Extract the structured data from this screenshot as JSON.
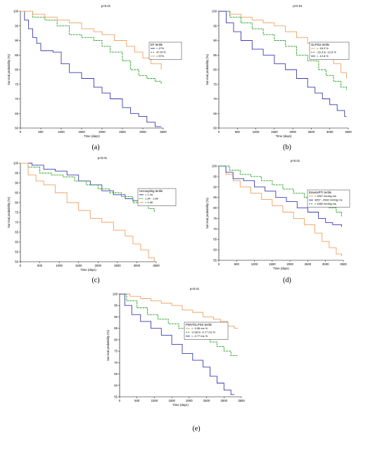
{
  "colors": {
    "blue": "#3a3ab0",
    "green": "#22a022",
    "orange": "#f0a060"
  },
  "chart_data": [
    {
      "type": "line",
      "panel_label": "(a)",
      "pvalue": "p<0.01",
      "xlabel": "Time (days)",
      "ylabel": "Survival probability (%)",
      "xlim": [
        0,
        3500
      ],
      "ylim": [
        60,
        100
      ],
      "xticks": [
        0,
        500,
        1000,
        1500,
        2000,
        2500,
        3000,
        3500
      ],
      "yticks": [
        60,
        65,
        70,
        75,
        80,
        85,
        90,
        95,
        100
      ],
      "legend_title": "EF tertile",
      "legend_pos": "right-middle",
      "series": [
        {
          "name": "< 47%",
          "color": "blue",
          "points": [
            [
              0,
              100
            ],
            [
              100,
              97
            ],
            [
              200,
              94
            ],
            [
              300,
              91
            ],
            [
              400,
              89
            ],
            [
              500,
              86.5
            ],
            [
              800,
              86
            ],
            [
              1000,
              82
            ],
            [
              1200,
              79
            ],
            [
              1500,
              77
            ],
            [
              1800,
              74
            ],
            [
              2000,
              72
            ],
            [
              2200,
              70
            ],
            [
              2500,
              67
            ],
            [
              2700,
              65
            ],
            [
              2900,
              64
            ],
            [
              3100,
              62
            ],
            [
              3300,
              60.5
            ],
            [
              3450,
              60.5
            ]
          ]
        },
        {
          "name": "47-57%",
          "color": "green",
          "points": [
            [
              0,
              100
            ],
            [
              300,
              98
            ],
            [
              600,
              97
            ],
            [
              900,
              95
            ],
            [
              1200,
              92
            ],
            [
              1500,
              91
            ],
            [
              1800,
              90
            ],
            [
              2000,
              88
            ],
            [
              2200,
              86
            ],
            [
              2500,
              83
            ],
            [
              2700,
              80
            ],
            [
              2900,
              78
            ],
            [
              3100,
              77
            ],
            [
              3300,
              76
            ],
            [
              3450,
              75
            ]
          ]
        },
        {
          "name": "> 57%",
          "color": "orange",
          "points": [
            [
              0,
              100
            ],
            [
              300,
              99
            ],
            [
              600,
              98
            ],
            [
              900,
              97
            ],
            [
              1200,
              96
            ],
            [
              1500,
              94
            ],
            [
              1800,
              93
            ],
            [
              2000,
              92
            ],
            [
              2300,
              90
            ],
            [
              2600,
              88
            ],
            [
              2800,
              86
            ],
            [
              3000,
              84
            ],
            [
              3200,
              82
            ],
            [
              3450,
              80
            ]
          ]
        }
      ]
    },
    {
      "type": "line",
      "panel_label": "(b)",
      "pvalue": "p<0.01",
      "xlabel": "Time (days)",
      "ylabel": "Survival probability (%)",
      "xlim": [
        0,
        3500
      ],
      "ylim": [
        60,
        100
      ],
      "xticks": [
        0,
        500,
        1000,
        1500,
        2000,
        2500,
        3000,
        3500
      ],
      "yticks": [
        60,
        65,
        70,
        75,
        80,
        85,
        90,
        95,
        100
      ],
      "legend_title": "GLPSS tertile",
      "legend_pos": "right-middle",
      "series": [
        {
          "name": "< -16.3 %",
          "color": "orange",
          "points": [
            [
              0,
              100
            ],
            [
              300,
              99
            ],
            [
              600,
              98
            ],
            [
              900,
              97
            ],
            [
              1200,
              96
            ],
            [
              1500,
              95
            ],
            [
              1800,
              93
            ],
            [
              2100,
              91
            ],
            [
              2400,
              89
            ],
            [
              2700,
              87
            ],
            [
              2900,
              85
            ],
            [
              3100,
              82
            ],
            [
              3300,
              79
            ],
            [
              3450,
              77
            ]
          ]
        },
        {
          "name": "-16.3 to -12.8 %",
          "color": "green",
          "points": [
            [
              0,
              100
            ],
            [
              300,
              98
            ],
            [
              600,
              96
            ],
            [
              900,
              94
            ],
            [
              1200,
              92
            ],
            [
              1500,
              90
            ],
            [
              1800,
              88
            ],
            [
              2100,
              85
            ],
            [
              2400,
              83
            ],
            [
              2700,
              80
            ],
            [
              2900,
              78
            ],
            [
              3100,
              76
            ],
            [
              3300,
              74
            ],
            [
              3450,
              73
            ]
          ]
        },
        {
          "name": "> -12.8 %",
          "color": "blue",
          "points": [
            [
              0,
              100
            ],
            [
              200,
              96
            ],
            [
              400,
              93
            ],
            [
              600,
              90
            ],
            [
              900,
              87
            ],
            [
              1200,
              85
            ],
            [
              1500,
              82
            ],
            [
              1800,
              80
            ],
            [
              2100,
              77
            ],
            [
              2400,
              74
            ],
            [
              2600,
              72
            ],
            [
              2800,
              70
            ],
            [
              3000,
              68
            ],
            [
              3200,
              66
            ],
            [
              3400,
              64
            ],
            [
              3450,
              64
            ]
          ]
        }
      ]
    },
    {
      "type": "line",
      "panel_label": "(c)",
      "pvalue": "p<0.01",
      "xlabel": "Time (days)",
      "ylabel": "Survival probability (%)",
      "xlim": [
        0,
        3500
      ],
      "ylim": [
        50,
        100
      ],
      "xticks": [
        0,
        500,
        1000,
        1500,
        2000,
        2500,
        3000,
        3500
      ],
      "yticks": [
        50,
        55,
        60,
        65,
        70,
        75,
        80,
        85,
        90,
        95,
        100
      ],
      "legend_title": "Uncoupling tertile",
      "legend_pos": "right-middle",
      "series": [
        {
          "name": "< 1.34",
          "color": "blue",
          "points": [
            [
              0,
              100
            ],
            [
              300,
              99
            ],
            [
              600,
              97
            ],
            [
              900,
              96
            ],
            [
              1200,
              94
            ],
            [
              1500,
              91
            ],
            [
              1800,
              89
            ],
            [
              2100,
              86
            ],
            [
              2400,
              84
            ],
            [
              2700,
              82
            ],
            [
              2900,
              81
            ],
            [
              3100,
              80
            ],
            [
              3200,
              79.5
            ],
            [
              3550,
              79.5
            ]
          ]
        },
        {
          "name": "1.34 - 1.68",
          "color": "green",
          "points": [
            [
              0,
              100
            ],
            [
              200,
              98
            ],
            [
              500,
              95
            ],
            [
              800,
              94
            ],
            [
              1100,
              93
            ],
            [
              1400,
              91
            ],
            [
              1700,
              89
            ],
            [
              2000,
              87
            ],
            [
              2300,
              85
            ],
            [
              2600,
              83
            ],
            [
              2900,
              80
            ],
            [
              3100,
              79
            ],
            [
              3300,
              77
            ],
            [
              3450,
              75
            ]
          ]
        },
        {
          "name": "> 1.68",
          "color": "orange",
          "points": [
            [
              0,
              100
            ],
            [
              200,
              94
            ],
            [
              400,
              91
            ],
            [
              600,
              89
            ],
            [
              900,
              85
            ],
            [
              1200,
              80
            ],
            [
              1500,
              76
            ],
            [
              1800,
              72
            ],
            [
              2100,
              70
            ],
            [
              2400,
              66
            ],
            [
              2700,
              63
            ],
            [
              2900,
              59
            ],
            [
              3100,
              56
            ],
            [
              3300,
              52
            ],
            [
              3450,
              50
            ]
          ]
        }
      ]
    },
    {
      "type": "line",
      "panel_label": "(d)",
      "pvalue": "p<0.01",
      "xlabel": "Time (days)",
      "ylabel": "Survival probability (%)",
      "xlim": [
        0,
        3500
      ],
      "ylim": [
        55,
        100
      ],
      "xticks": [
        0,
        500,
        1000,
        1500,
        2000,
        2500,
        3000,
        3500
      ],
      "yticks": [
        55,
        60,
        65,
        70,
        75,
        80,
        85,
        90,
        95,
        100
      ],
      "legend_title": "EnwsixPTI tertile",
      "legend_pos": "right-middle",
      "series": [
        {
          "name": "< 3357 mmHg ms",
          "color": "orange",
          "points": [
            [
              0,
              100
            ],
            [
              200,
              96
            ],
            [
              400,
              93
            ],
            [
              600,
              90
            ],
            [
              900,
              87
            ],
            [
              1200,
              84
            ],
            [
              1500,
              81
            ],
            [
              1800,
              78
            ],
            [
              2100,
              75
            ],
            [
              2400,
              72
            ],
            [
              2700,
              68
            ],
            [
              2900,
              64
            ],
            [
              3100,
              61
            ],
            [
              3300,
              58
            ],
            [
              3450,
              57
            ]
          ]
        },
        {
          "name": "3357 - 4382 mmHg ms",
          "color": "blue",
          "points": [
            [
              0,
              100
            ],
            [
              200,
              97
            ],
            [
              400,
              94
            ],
            [
              700,
              93
            ],
            [
              1000,
              90
            ],
            [
              1300,
              88
            ],
            [
              1600,
              85
            ],
            [
              1900,
              83
            ],
            [
              2200,
              80
            ],
            [
              2500,
              78
            ],
            [
              2800,
              75
            ],
            [
              3000,
              73
            ],
            [
              3200,
              72
            ],
            [
              3450,
              71
            ]
          ]
        },
        {
          "name": "> 4382 mmHg ms",
          "color": "green",
          "points": [
            [
              0,
              100
            ],
            [
              300,
              98
            ],
            [
              600,
              96
            ],
            [
              900,
              95
            ],
            [
              1200,
              93
            ],
            [
              1500,
              91
            ],
            [
              1800,
              89
            ],
            [
              2100,
              87
            ],
            [
              2400,
              85
            ],
            [
              2700,
              83
            ],
            [
              2900,
              82
            ],
            [
              3100,
              80
            ],
            [
              3300,
              78
            ],
            [
              3450,
              76
            ]
          ]
        }
      ]
    },
    {
      "type": "line",
      "panel_label": "(e)",
      "pvalue": "p<0.01",
      "xlabel": "Time (days)",
      "ylabel": "Survival probability (%)",
      "xlim": [
        0,
        3500
      ],
      "ylim": [
        55,
        100
      ],
      "xticks": [
        0,
        500,
        1000,
        1500,
        2000,
        2500,
        3000,
        3500
      ],
      "yticks": [
        55,
        60,
        65,
        70,
        75,
        80,
        85,
        90,
        95,
        100
      ],
      "legend_title": "PWV/GLPSS tertile",
      "legend_pos": "right-middle",
      "series": [
        {
          "name": "> -0.58 ms %",
          "color": "orange",
          "points": [
            [
              0,
              100
            ],
            [
              300,
              99
            ],
            [
              600,
              98
            ],
            [
              900,
              97
            ],
            [
              1200,
              96
            ],
            [
              1500,
              95
            ],
            [
              1800,
              93
            ],
            [
              2100,
              92
            ],
            [
              2400,
              90
            ],
            [
              2700,
              89
            ],
            [
              2900,
              88
            ],
            [
              3100,
              86
            ],
            [
              3300,
              85
            ],
            [
              3400,
              85
            ]
          ]
        },
        {
          "name": "-0.58 to -0.77 ms %",
          "color": "green",
          "points": [
            [
              0,
              100
            ],
            [
              200,
              97
            ],
            [
              500,
              94
            ],
            [
              800,
              91
            ],
            [
              1100,
              89
            ],
            [
              1400,
              87
            ],
            [
              1700,
              85
            ],
            [
              2000,
              83
            ],
            [
              2300,
              81
            ],
            [
              2600,
              79
            ],
            [
              2800,
              77
            ],
            [
              3000,
              75
            ],
            [
              3200,
              73
            ],
            [
              3400,
              73
            ]
          ]
        },
        {
          "name": "< -0.77 ms %",
          "color": "blue",
          "points": [
            [
              0,
              100
            ],
            [
              150,
              95
            ],
            [
              350,
              91
            ],
            [
              600,
              88
            ],
            [
              900,
              85
            ],
            [
              1200,
              82
            ],
            [
              1500,
              78
            ],
            [
              1800,
              74
            ],
            [
              2100,
              71
            ],
            [
              2400,
              68
            ],
            [
              2600,
              64
            ],
            [
              2800,
              61
            ],
            [
              3000,
              58
            ],
            [
              3200,
              56
            ],
            [
              3300,
              56
            ]
          ]
        }
      ]
    }
  ]
}
